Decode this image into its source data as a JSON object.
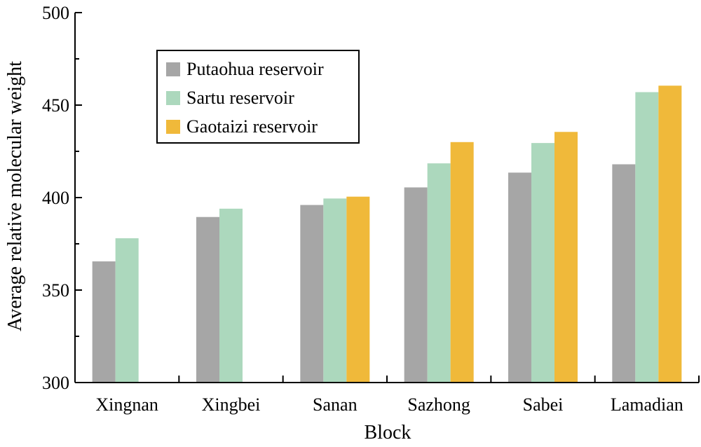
{
  "chart_data": {
    "type": "bar",
    "title": "",
    "xlabel": "Block",
    "ylabel": "Average relative molecular weight",
    "ylim": [
      300,
      500
    ],
    "yticks": [
      300,
      350,
      400,
      450,
      500
    ],
    "categories": [
      "Xingnan",
      "Xingbei",
      "Sanan",
      "Sazhong",
      "Sabei",
      "Lamadian"
    ],
    "series": [
      {
        "name": "Putaohua reservoir",
        "color": "#a6a6a6",
        "values": [
          365.5,
          389.5,
          396,
          405.5,
          413.5,
          418
        ]
      },
      {
        "name": "Sartu reservoir",
        "color": "#acd8bd",
        "values": [
          378,
          394,
          399.5,
          418.5,
          429.5,
          457
        ]
      },
      {
        "name": "Gaotaizi reservoir",
        "color": "#f0b93a",
        "values": [
          null,
          null,
          400.5,
          430,
          435.5,
          460.5
        ]
      }
    ],
    "legend_position": "top-left",
    "grid": false
  }
}
